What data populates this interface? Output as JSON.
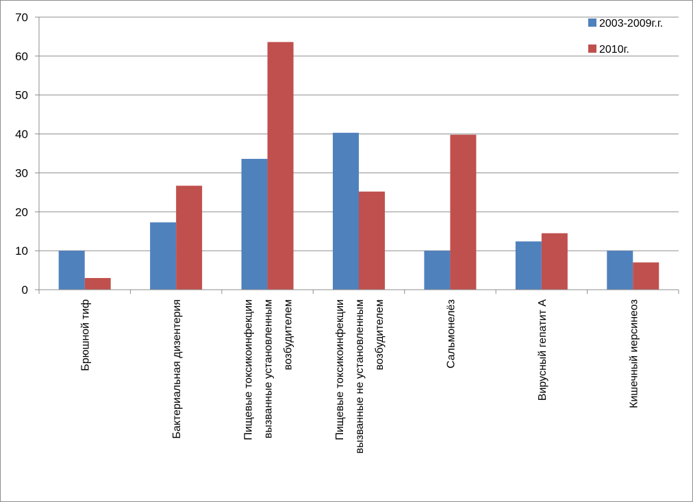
{
  "chart_data": {
    "type": "bar",
    "title": "",
    "xlabel": "",
    "ylabel": "",
    "ylim": [
      0,
      70
    ],
    "yticks": [
      0,
      10,
      20,
      30,
      40,
      50,
      60,
      70
    ],
    "grid": true,
    "legend_position": "top-right",
    "categories": [
      [
        "Брюшной тиф"
      ],
      [
        "Бактериальная дизентерия"
      ],
      [
        "Пищевые токсикоинфекции",
        "вызванные установленным",
        "возбудителем"
      ],
      [
        "Пищевые токсикоинфекции",
        "вызванные не установленным",
        "возбудителем"
      ],
      [
        "Сальмонелёз"
      ],
      [
        "Вирусный гепатит А"
      ],
      [
        "Кишечный иерсинеоз"
      ]
    ],
    "series": [
      {
        "name": "2003-2009г.г.",
        "color": "#4f81bd",
        "values": [
          10,
          17.3,
          33.6,
          40.3,
          10,
          12.4,
          10
        ]
      },
      {
        "name": "2010г.",
        "color": "#c0504d",
        "values": [
          3,
          26.7,
          63.6,
          25.2,
          39.8,
          14.5,
          7
        ]
      }
    ]
  }
}
